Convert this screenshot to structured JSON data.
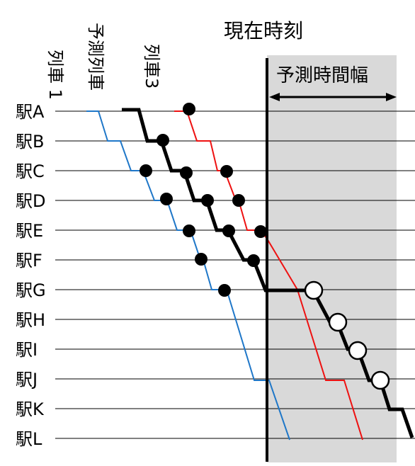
{
  "title": "現在時刻",
  "horizon_label": "予測時間幅",
  "train_labels": {
    "train1": "列車 1",
    "predicted": "予測列車",
    "train3": "列車3"
  },
  "stations": [
    "駅A",
    "駅B",
    "駅C",
    "駅D",
    "駅E",
    "駅F",
    "駅G",
    "駅H",
    "駅I",
    "駅J",
    "駅K",
    "駅L"
  ],
  "colors": {
    "train1": "#1f77c8",
    "train3": "#ee1111",
    "predicted": "#000000",
    "horizon_fill": "#d9d9d9",
    "grid": "#000000"
  }
}
